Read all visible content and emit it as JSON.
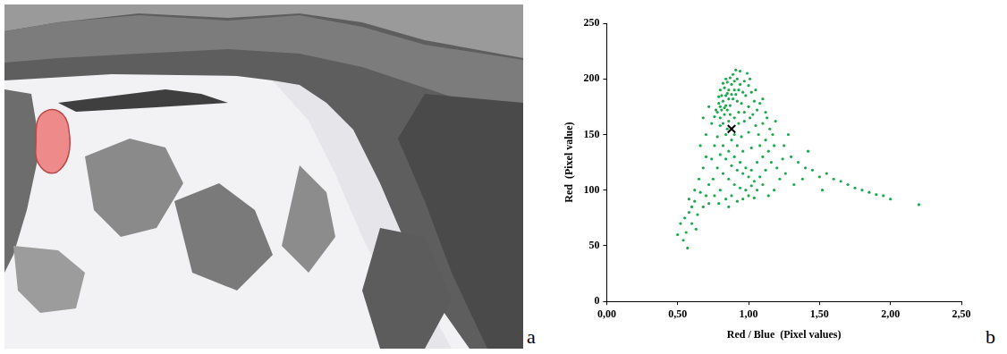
{
  "panel_labels": [
    "a",
    "b"
  ],
  "chart_data": {
    "type": "scatter",
    "x_label": "Red / Blue  (Pixel values)",
    "y_label": "Red  (Pixel value)",
    "xlim": [
      0,
      2.5
    ],
    "ylim": [
      0,
      250
    ],
    "xticks": [
      {
        "value": 0,
        "label": "0,00"
      },
      {
        "value": 0.5,
        "label": "0,50"
      },
      {
        "value": 1,
        "label": "1,00"
      },
      {
        "value": 1.5,
        "label": "1,50"
      },
      {
        "value": 2,
        "label": "2,00"
      },
      {
        "value": 2.5,
        "label": "2,50"
      }
    ],
    "yticks": [
      0,
      50,
      100,
      150,
      200,
      250
    ],
    "grid": false,
    "series": [
      {
        "color": "#1fa84f",
        "marker": "dot",
        "x": [
          0.78,
          0.8,
          0.82,
          0.84,
          0.86,
          0.88,
          0.9,
          0.92,
          0.8,
          0.83,
          0.85,
          0.87,
          0.89,
          0.91,
          0.93,
          0.79,
          0.81,
          0.83,
          0.85,
          0.87,
          0.89,
          0.94,
          0.96,
          0.95,
          0.93,
          0.9,
          0.86,
          0.82,
          0.77,
          0.76,
          0.84,
          0.88,
          0.92,
          0.86,
          0.9,
          0.8,
          0.82,
          0.84,
          0.97,
          1.0,
          0.98,
          1.02,
          1.04,
          1.0,
          0.97,
          1.03,
          1.06,
          1.08,
          1.05,
          0.99,
          0.94,
          0.91,
          1.01,
          1.1,
          1.12,
          0.81,
          0.85,
          0.87,
          0.79,
          0.83,
          0.85,
          0.9,
          0.95,
          1.0,
          1.05,
          1.1,
          1.15,
          1.12,
          1.08,
          1.02,
          0.96,
          0.92,
          0.88,
          0.84,
          0.8,
          0.78,
          0.82,
          0.86,
          0.9,
          0.94,
          0.98,
          1.02,
          1.06,
          1.1,
          1.14,
          1.18,
          1.16,
          1.12,
          1.08,
          1.04,
          1.0,
          0.96,
          0.92,
          0.88,
          0.84,
          0.8,
          0.76,
          0.74,
          0.78,
          0.82,
          0.86,
          0.9,
          0.94,
          0.98,
          1.02,
          1.06,
          1.1,
          1.2,
          1.22,
          1.18,
          0.93,
          0.97,
          1.01,
          1.07,
          1.13,
          1.17,
          1.19,
          1.25,
          1.24,
          1.28,
          0.7,
          0.68,
          0.65,
          0.72,
          0.7,
          0.66,
          0.62,
          0.6,
          0.58,
          0.55,
          0.52,
          0.5,
          0.56,
          0.6,
          0.64,
          0.68,
          0.72,
          0.76,
          0.8,
          0.54,
          0.62,
          0.58,
          0.66,
          0.7,
          0.74,
          0.72,
          0.68,
          0.84,
          0.88,
          0.92,
          0.96,
          1.0,
          1.04,
          0.75,
          0.79,
          0.57,
          0.63,
          0.86,
          1.14,
          1.26,
          1.3,
          1.35,
          1.4,
          1.45,
          1.5,
          1.55,
          1.6,
          1.65,
          1.7,
          1.75,
          1.8,
          1.85,
          1.9,
          1.95,
          2.0,
          2.2,
          1.32,
          1.42,
          1.52,
          1.38
        ],
        "values": [
          170,
          175,
          180,
          185,
          190,
          195,
          198,
          200,
          165,
          168,
          172,
          176,
          182,
          186,
          190,
          178,
          185,
          192,
          197,
          201,
          204,
          195,
          188,
          178,
          170,
          165,
          162,
          160,
          172,
          166,
          176,
          186,
          180,
          182,
          190,
          190,
          196,
          200,
          198,
          194,
          185,
          188,
          180,
          175,
          170,
          168,
          172,
          178,
          190,
          205,
          207,
          208,
          200,
          182,
          170,
          172,
          187,
          168,
          184,
          174,
          155,
          150,
          148,
          152,
          158,
          160,
          155,
          145,
          140,
          138,
          135,
          140,
          145,
          150,
          158,
          148,
          140,
          135,
          130,
          125,
          120,
          118,
          125,
          130,
          135,
          140,
          125,
          118,
          112,
          108,
          112,
          115,
          118,
          122,
          128,
          132,
          140,
          128,
          120,
          115,
          110,
          105,
          102,
          100,
          104,
          100,
          105,
          120,
          110,
          100,
          160,
          162,
          165,
          150,
          165,
          150,
          162,
          140,
          128,
          150,
          130,
          120,
          110,
          105,
          95,
          98,
          90,
          85,
          80,
          75,
          70,
          60,
          62,
          70,
          78,
          85,
          88,
          95,
          100,
          55,
          100,
          92,
          140,
          150,
          160,
          175,
          165,
          92,
          95,
          90,
          92,
          95,
          93,
          110,
          88,
          48,
          65,
          85,
          95,
          115,
          130,
          125,
          120,
          118,
          112,
          115,
          110,
          108,
          105,
          102,
          100,
          98,
          96,
          95,
          92,
          87,
          105,
          135,
          100,
          110
        ]
      },
      {
        "color": "#000000",
        "marker": "x",
        "x": [
          0.88
        ],
        "values": [
          155
        ]
      }
    ]
  }
}
